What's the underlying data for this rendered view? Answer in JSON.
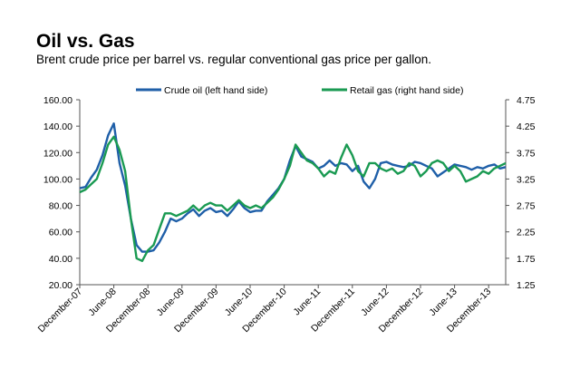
{
  "title": "Oil vs. Gas",
  "subtitle": "Brent crude price per barrel vs. regular conventional gas price per gallon.",
  "chart_data": {
    "type": "line",
    "x_tick_labels": [
      "December-07",
      "June-08",
      "December-08",
      "June-09",
      "December-09",
      "June-10",
      "December-10",
      "June-11",
      "December-11",
      "June-12",
      "December-12",
      "June-13",
      "December-13"
    ],
    "y_left": {
      "range": [
        20,
        160
      ],
      "ticks": [
        "20.00",
        "40.00",
        "60.00",
        "80.00",
        "100.00",
        "120.00",
        "140.00",
        "160.00"
      ]
    },
    "y_right": {
      "range": [
        1.25,
        4.75
      ],
      "ticks": [
        "1.25",
        "1.75",
        "2.25",
        "2.75",
        "3.25",
        "3.75",
        "4.25",
        "4.75"
      ]
    },
    "x": [
      0,
      1,
      2,
      3,
      4,
      5,
      6,
      7,
      8,
      9,
      10,
      11,
      12,
      13,
      14,
      15,
      16,
      17,
      18,
      19,
      20,
      21,
      22,
      23,
      24,
      25,
      26,
      27,
      28,
      29,
      30,
      31,
      32,
      33,
      34,
      35,
      36,
      37,
      38,
      39,
      40,
      41,
      42,
      43,
      44,
      45,
      46,
      47,
      48,
      49,
      50,
      51,
      52,
      53,
      54,
      55,
      56,
      57,
      58,
      59,
      60,
      61,
      62,
      63,
      64,
      65,
      66,
      67,
      68,
      69,
      70,
      71,
      72,
      73,
      74,
      75
    ],
    "series": [
      {
        "name": "Crude oil (left hand side)",
        "axis": "left",
        "color": "#1f5fa8",
        "values": [
          93,
          94,
          101,
          107,
          118,
          133,
          142,
          112,
          95,
          70,
          50,
          45,
          45,
          46,
          52,
          60,
          70,
          68,
          70,
          74,
          77,
          72,
          76,
          78,
          75,
          76,
          72,
          77,
          83,
          78,
          75,
          76,
          76,
          83,
          88,
          93,
          100,
          114,
          125,
          117,
          115,
          113,
          108,
          110,
          114,
          110,
          112,
          111,
          106,
          110,
          98,
          93,
          100,
          112,
          113,
          111,
          110,
          109,
          110,
          113,
          112,
          110,
          108,
          102,
          105,
          108,
          111,
          110,
          109,
          107,
          109,
          108,
          110,
          111,
          108,
          109
        ]
      },
      {
        "name": "Retail gas (right hand side)",
        "axis": "right",
        "color": "#1a9a52",
        "values": [
          3.0,
          3.05,
          3.15,
          3.25,
          3.55,
          3.9,
          4.05,
          3.8,
          3.4,
          2.5,
          1.75,
          1.7,
          1.9,
          2.0,
          2.3,
          2.6,
          2.6,
          2.55,
          2.6,
          2.65,
          2.75,
          2.65,
          2.75,
          2.8,
          2.75,
          2.75,
          2.65,
          2.75,
          2.85,
          2.75,
          2.7,
          2.75,
          2.7,
          2.8,
          2.9,
          3.05,
          3.25,
          3.5,
          3.9,
          3.75,
          3.6,
          3.55,
          3.45,
          3.3,
          3.4,
          3.35,
          3.65,
          3.9,
          3.7,
          3.4,
          3.3,
          3.55,
          3.55,
          3.45,
          3.4,
          3.45,
          3.35,
          3.4,
          3.55,
          3.5,
          3.3,
          3.4,
          3.55,
          3.6,
          3.55,
          3.4,
          3.5,
          3.4,
          3.2,
          3.25,
          3.3,
          3.4,
          3.35,
          3.45,
          3.5,
          3.55
        ]
      }
    ]
  }
}
